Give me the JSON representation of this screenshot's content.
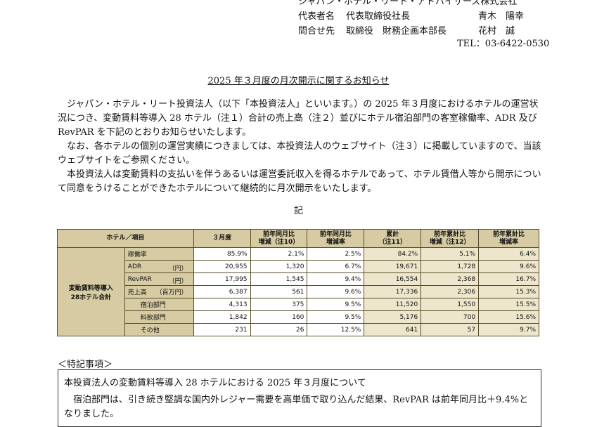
{
  "header": {
    "company": "ジャパン・ホテル・リート・アドバイザーズ株式会社",
    "rep_label": "代表者名",
    "rep_title": "代表取締役社長",
    "rep_name": "青木　陽幸",
    "contact_label": "問合せ先",
    "contact_title": "取締役　財務企画本部長",
    "contact_name": "花村　誠",
    "tel": "TEL：03-6422-0530"
  },
  "title": "2025 年３月度の月次開示に関するお知らせ",
  "paragraphs": [
    "ジャパン・ホテル・リート投資法人（以下「本投資法人」といいます。）の 2025 年３月度におけるホテルの運営状況につき、変動賃料等導入 28 ホテル（注１）合計の売上高（注２）並びにホテル宿泊部門の客室稼働率、ADR 及び RevPAR を下記のとおりお知らせいたします。",
    "なお、各ホテルの個別の運営実績につきましては、本投資法人のウェブサイト（注３）に掲載していますので、当該ウェブサイトをご参照ください。",
    "本投資法人は変動賃料の支払いを伴うあるいは運営委託収入を得るホテルであって、ホテル賃借人等から開示について同意をうけることができたホテルについて継続的に月次開示をいたします。"
  ],
  "ki": "記",
  "table": {
    "headers": {
      "item": "ホテル／項目",
      "month": "３月度",
      "yoy_diff": "前年同月比\n増減（注10）",
      "yoy_rate": "前年同月比\n増減率",
      "cum": "累計\n（注11）",
      "cum_diff": "前年累計比\n増減（注12）",
      "cum_rate": "前年累計比\n増減率"
    },
    "group": "変動賃料等導入\n28ホテル合計",
    "rows": [
      {
        "label": "稼働率",
        "unit": "",
        "v": [
          "85.9%",
          "2.1%",
          "2.5%",
          "84.2%",
          "5.1%",
          "6.4%"
        ]
      },
      {
        "label": "ADR",
        "unit": "（円）",
        "v": [
          "20,955",
          "1,320",
          "6.7%",
          "19,671",
          "1,728",
          "9.6%"
        ]
      },
      {
        "label": "RevPAR",
        "unit": "（円）",
        "v": [
          "17,995",
          "1,545",
          "9.4%",
          "16,554",
          "2,368",
          "16.7%"
        ]
      },
      {
        "label": "売上高",
        "unit": "（百万円）",
        "v": [
          "6,387",
          "561",
          "9.6%",
          "17,336",
          "2,306",
          "15.3%"
        ]
      },
      {
        "label": "宿泊部門",
        "unit": "",
        "v": [
          "4,313",
          "375",
          "9.5%",
          "11,520",
          "1,550",
          "15.5%"
        ]
      },
      {
        "label": "料飲部門",
        "unit": "",
        "v": [
          "1,842",
          "160",
          "9.5%",
          "5,176",
          "700",
          "15.6%"
        ]
      },
      {
        "label": "その他",
        "unit": "",
        "v": [
          "231",
          "26",
          "12.5%",
          "641",
          "57",
          "9.7%"
        ]
      }
    ]
  },
  "notes": {
    "label": "＜特記事項＞",
    "line1": "本投資法人の変動賃料等導入 28 ホテルにおける 2025 年３月度について",
    "line2": "宿泊部門は、引き続き堅調な国内外レジャー需要を高単価で取り込んだ結果、RevPAR は前年同月比＋9.4%となりました。"
  }
}
